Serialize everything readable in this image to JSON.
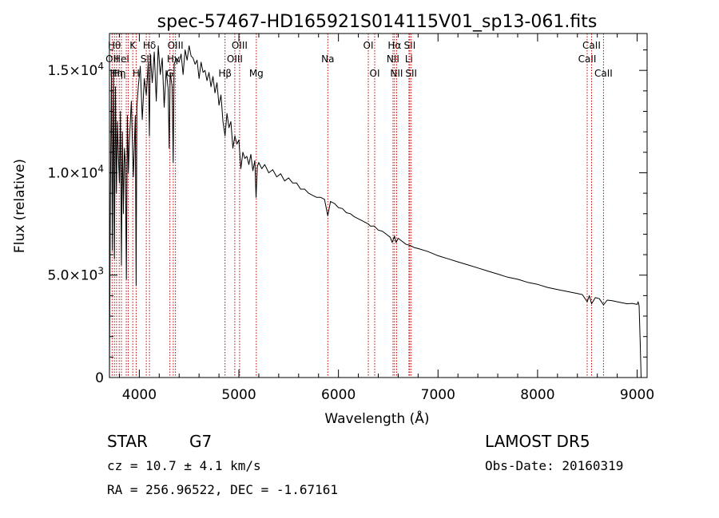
{
  "chart_data": {
    "type": "line",
    "title": "spec-57467-HD165921S014115V01_sp13-061.fits",
    "xlabel": "Wavelength (Å)",
    "ylabel": "Flux (relative)",
    "xlim": [
      3700,
      9100
    ],
    "ylim": [
      0,
      16800
    ],
    "grid": false,
    "legend": "none",
    "x_ticks": [
      {
        "value": 4000,
        "label": "4000"
      },
      {
        "value": 5000,
        "label": "5000"
      },
      {
        "value": 6000,
        "label": "6000"
      },
      {
        "value": 7000,
        "label": "7000"
      },
      {
        "value": 8000,
        "label": "8000"
      },
      {
        "value": 9000,
        "label": "9000"
      }
    ],
    "y_ticks": [
      {
        "value": 0,
        "mant": "0",
        "exp": ""
      },
      {
        "value": 5000,
        "mant": "5.0×10",
        "exp": "3"
      },
      {
        "value": 10000,
        "mant": "1.0×10",
        "exp": "4"
      },
      {
        "value": 15000,
        "mant": "1.5×10",
        "exp": "4"
      }
    ],
    "series": [
      {
        "color": "#000000",
        "x": [
          3700,
          3710,
          3720,
          3730,
          3740,
          3750,
          3760,
          3770,
          3780,
          3790,
          3800,
          3810,
          3820,
          3830,
          3840,
          3850,
          3860,
          3870,
          3880,
          3890,
          3900,
          3920,
          3940,
          3960,
          3968,
          3975,
          3990,
          4010,
          4030,
          4050,
          4070,
          4090,
          4101,
          4110,
          4130,
          4150,
          4170,
          4190,
          4210,
          4230,
          4250,
          4270,
          4290,
          4300,
          4310,
          4330,
          4340,
          4350,
          4370,
          4400,
          4420,
          4440,
          4460,
          4480,
          4500,
          4520,
          4540,
          4560,
          4580,
          4600,
          4620,
          4640,
          4660,
          4680,
          4700,
          4720,
          4740,
          4760,
          4780,
          4800,
          4820,
          4840,
          4861,
          4880,
          4900,
          4920,
          4940,
          4960,
          4980,
          5000,
          5020,
          5040,
          5060,
          5080,
          5100,
          5120,
          5140,
          5160,
          5172,
          5185,
          5200,
          5230,
          5260,
          5300,
          5340,
          5380,
          5420,
          5460,
          5500,
          5540,
          5580,
          5620,
          5660,
          5700,
          5740,
          5780,
          5820,
          5860,
          5893,
          5920,
          5960,
          6000,
          6040,
          6080,
          6120,
          6160,
          6200,
          6240,
          6280,
          6300,
          6320,
          6360,
          6400,
          6440,
          6480,
          6520,
          6540,
          6563,
          6580,
          6600,
          6640,
          6680,
          6720,
          6760,
          6800,
          6900,
          7000,
          7100,
          7200,
          7300,
          7400,
          7500,
          7600,
          7700,
          7800,
          7900,
          8000,
          8100,
          8200,
          8300,
          8400,
          8450,
          8498,
          8520,
          8542,
          8580,
          8620,
          8662,
          8700,
          8750,
          8800,
          8850,
          8900,
          8950,
          9000,
          9010,
          9020,
          9030,
          9040,
          9050
        ],
        "y": [
          0,
          9000,
          14800,
          6200,
          15000,
          5800,
          14200,
          9000,
          12500,
          10800,
          9500,
          13000,
          5500,
          12000,
          8000,
          11200,
          10500,
          4800,
          12800,
          10000,
          11500,
          13500,
          9800,
          12800,
          4500,
          13200,
          14200,
          15200,
          12600,
          14600,
          13800,
          15400,
          11800,
          15800,
          14400,
          15900,
          13500,
          16200,
          14800,
          15600,
          13200,
          15000,
          14100,
          11200,
          14900,
          14200,
          10500,
          15300,
          15600,
          15400,
          15800,
          14800,
          16000,
          15500,
          16200,
          15700,
          15600,
          15300,
          15500,
          14600,
          15400,
          14900,
          15000,
          14500,
          14900,
          14200,
          14700,
          13900,
          14400,
          13300,
          13800,
          12500,
          11800,
          12900,
          12200,
          12500,
          11200,
          11800,
          11400,
          11600,
          10200,
          11000,
          10700,
          10800,
          10400,
          10900,
          10100,
          10600,
          8800,
          10300,
          10500,
          10200,
          10400,
          10000,
          10150,
          9800,
          9950,
          9600,
          9750,
          9500,
          9500,
          9200,
          9200,
          9000,
          8900,
          8800,
          8800,
          8700,
          7900,
          8600,
          8500,
          8300,
          8250,
          8050,
          8000,
          7850,
          7750,
          7650,
          7550,
          7500,
          7400,
          7400,
          7200,
          7150,
          7000,
          6850,
          6600,
          6900,
          6600,
          6800,
          6650,
          6500,
          6450,
          6350,
          6300,
          6150,
          5950,
          5800,
          5650,
          5500,
          5350,
          5200,
          5050,
          4900,
          4800,
          4650,
          4550,
          4400,
          4300,
          4200,
          4100,
          4050,
          3700,
          4000,
          3600,
          3900,
          3850,
          3550,
          3780,
          3750,
          3700,
          3650,
          3600,
          3620,
          3570,
          3700,
          3500,
          1800,
          0,
          0
        ]
      }
    ],
    "spectral_lines": [
      {
        "wl": 3727,
        "label": "OII",
        "row": 1
      },
      {
        "wl": 3750,
        "label": "Hθ",
        "row": 0
      },
      {
        "wl": 3771,
        "label": "Hη",
        "row": 2
      },
      {
        "wl": 3798,
        "label": "Hη",
        "row": 2
      },
      {
        "wl": 3820,
        "label": "HeI",
        "row": 1
      },
      {
        "wl": 3869,
        "label": "",
        "row": 0
      },
      {
        "wl": 3889,
        "label": "",
        "row": 0
      },
      {
        "wl": 3934,
        "label": "K",
        "row": 0
      },
      {
        "wl": 3968,
        "label": "H",
        "row": 2
      },
      {
        "wl": 4070,
        "label": "SII",
        "row": 1
      },
      {
        "wl": 4102,
        "label": "Hδ",
        "row": 0
      },
      {
        "wl": 4307,
        "label": "G",
        "row": 2
      },
      {
        "wl": 4341,
        "label": "Hγ",
        "row": 1
      },
      {
        "wl": 4363,
        "label": "OIII",
        "row": 0
      },
      {
        "wl": 4861,
        "label": "Hβ",
        "row": 2
      },
      {
        "wl": 4959,
        "label": "OIII",
        "row": 1
      },
      {
        "wl": 5007,
        "label": "OIII",
        "row": 0
      },
      {
        "wl": 5175,
        "label": "Mg",
        "row": 2
      },
      {
        "wl": 5893,
        "label": "Na",
        "row": 1
      },
      {
        "wl": 6300,
        "label": "OI",
        "row": 0
      },
      {
        "wl": 6364,
        "label": "OI",
        "row": 2
      },
      {
        "wl": 6548,
        "label": "NII",
        "row": 1
      },
      {
        "wl": 6563,
        "label": "Hα",
        "row": 0
      },
      {
        "wl": 6584,
        "label": "NII",
        "row": 2
      },
      {
        "wl": 6708,
        "label": "Li",
        "row": 1
      },
      {
        "wl": 6716,
        "label": "SII",
        "row": 0
      },
      {
        "wl": 6731,
        "label": "SII",
        "row": 2
      },
      {
        "wl": 8498,
        "label": "CaII",
        "row": 1
      },
      {
        "wl": 8542,
        "label": "CaII",
        "row": 0
      },
      {
        "wl": 8662,
        "label": "CaII",
        "row": 2
      }
    ]
  },
  "info": {
    "class": "STAR",
    "subclass": "G7",
    "cz": "cz = 10.7 ± 4.1 km/s",
    "coords": "RA = 256.96522, DEC =  -1.67161",
    "survey": "LAMOST DR5",
    "obs_date": "Obs-Date: 20160319"
  }
}
